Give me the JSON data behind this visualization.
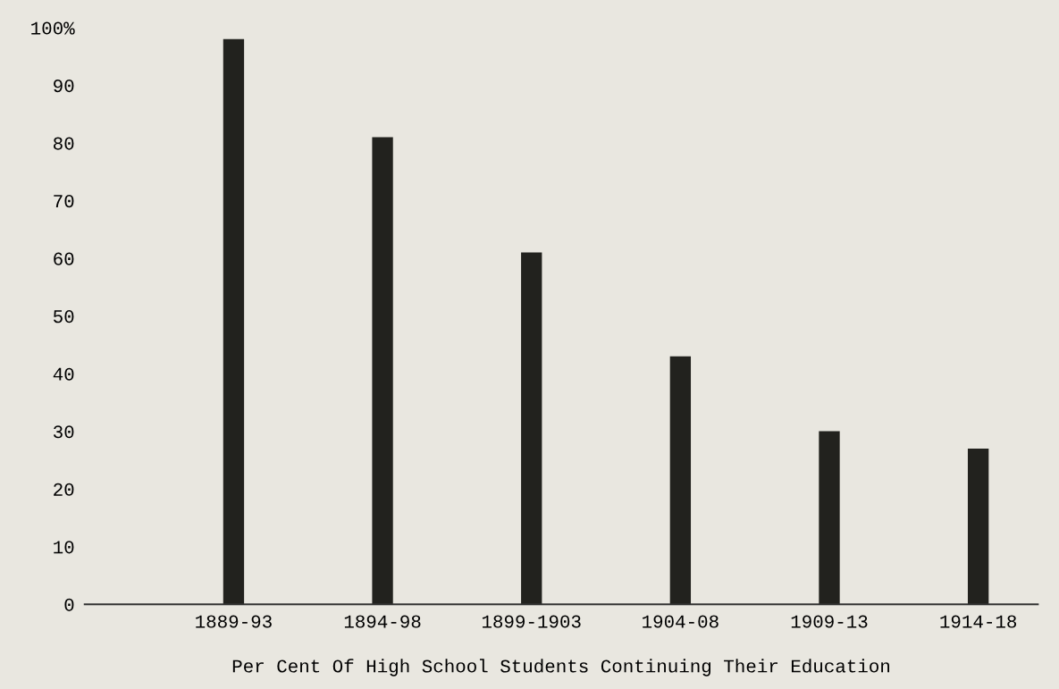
{
  "chart_data": {
    "type": "bar",
    "xlabel": "Per Cent Of High School Students Continuing Their Education",
    "categories": [
      "1889-93",
      "1894-98",
      "1899-1903",
      "1904-08",
      "1909-13",
      "1914-18"
    ],
    "values": [
      98,
      81,
      61,
      43,
      30,
      27
    ],
    "color": "#22221e",
    "ylim": [
      0,
      100
    ],
    "yticks": [
      0,
      10,
      20,
      30,
      40,
      50,
      60,
      70,
      80,
      90,
      {
        "value": 100,
        "label": "100%"
      }
    ],
    "grid": false
  }
}
